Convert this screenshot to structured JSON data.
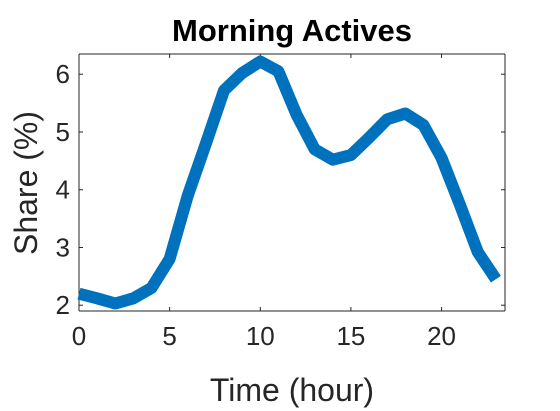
{
  "chart_data": {
    "type": "line",
    "title": "Morning Actives",
    "xlabel": "Time (hour)",
    "ylabel": "Share (%)",
    "xlim": [
      0,
      23.5
    ],
    "ylim": [
      1.9,
      6.35
    ],
    "xticks": [
      0,
      5,
      10,
      15,
      20
    ],
    "yticks": [
      2,
      3,
      4,
      5,
      6
    ],
    "grid": false,
    "line_color": "#0072bd",
    "series": [
      {
        "x": [
          0,
          1,
          2,
          3,
          4,
          5,
          6,
          7,
          8,
          9,
          10,
          11,
          12,
          13,
          14,
          15,
          16,
          17,
          18,
          19,
          20,
          21,
          22,
          23
        ],
        "y": [
          2.2,
          2.12,
          2.03,
          2.12,
          2.3,
          2.8,
          3.9,
          4.8,
          5.72,
          6.02,
          6.22,
          6.05,
          5.3,
          4.7,
          4.52,
          4.6,
          4.9,
          5.22,
          5.32,
          5.12,
          4.55,
          3.75,
          2.92,
          2.45
        ]
      }
    ]
  }
}
